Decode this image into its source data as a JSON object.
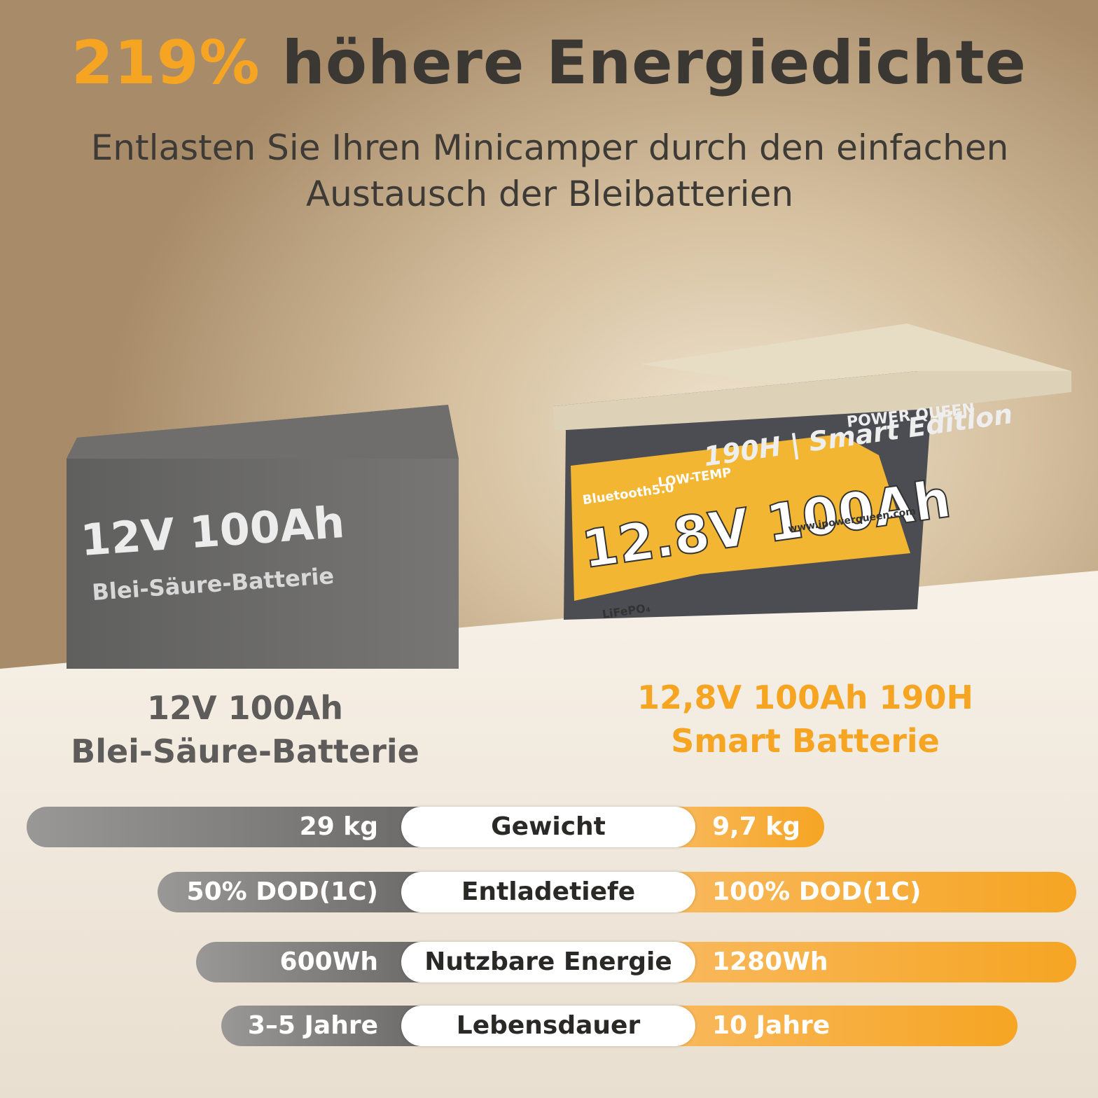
{
  "header": {
    "highlight": "219%",
    "title": "höhere Energiedichte",
    "subtitle": "Entlasten Sie Ihren Minicamper durch den einfachen Austausch der Bleibatterien"
  },
  "lead_battery": {
    "label_voltage": "12V 100Ah",
    "label_type": "Blei-Säure-Batterie"
  },
  "lifepo_battery": {
    "brand": "POWER QUEEN",
    "badge_bluetooth": "Bluetooth5.0",
    "badge_temp": "LOW-TEMP",
    "series": "190H | Smart Edition",
    "label": "12.8V 100Ah",
    "url": "www.ipowerqueen.com",
    "chemistry": "LiFePO₄"
  },
  "columns": {
    "left": {
      "line1": "12V 100Ah",
      "line2": "Blei-Säure-Batterie"
    },
    "right": {
      "line1": "12,8V 100Ah 190H",
      "line2": "Smart Batterie"
    }
  },
  "rows": [
    [
      "29 kg",
      "Gewicht",
      "9,7 kg"
    ],
    [
      "50% DOD(1C)",
      "Entladetiefe",
      "100% DOD(1C)"
    ],
    [
      "600Wh",
      "Nutzbare Energie",
      "1280Wh"
    ],
    [
      "3–5 Jahre",
      "Lebensdauer",
      "10 Jahre"
    ]
  ]
}
